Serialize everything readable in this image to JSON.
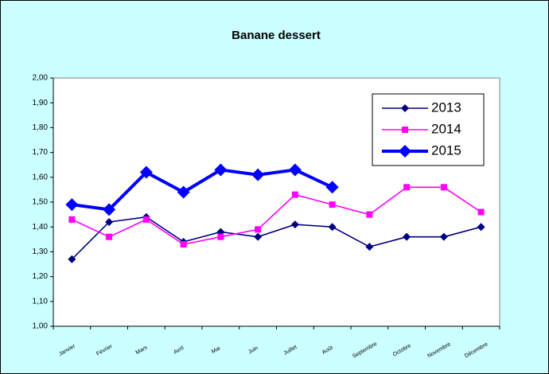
{
  "chart_data": {
    "type": "line",
    "title": "Banane dessert",
    "categories": [
      "Janvier",
      "Février",
      "Mars",
      "Avril",
      "Mai",
      "Juin",
      "Juillet",
      "Août",
      "Septembre",
      "Octobre",
      "Novembre",
      "Décembre"
    ],
    "series": [
      {
        "name": "2013",
        "color": "#000080",
        "marker": "diamond",
        "values": [
          1.27,
          1.42,
          1.44,
          1.34,
          1.38,
          1.36,
          1.41,
          1.4,
          1.32,
          1.36,
          1.36,
          1.4
        ]
      },
      {
        "name": "2014",
        "color": "#ff00ff",
        "marker": "square",
        "values": [
          1.43,
          1.36,
          1.43,
          1.33,
          1.36,
          1.39,
          1.53,
          1.49,
          1.45,
          1.56,
          1.56,
          1.46
        ]
      },
      {
        "name": "2015",
        "color": "#0000ff",
        "marker": "diamond",
        "values": [
          1.49,
          1.47,
          1.62,
          1.54,
          1.63,
          1.61,
          1.63,
          1.56,
          null,
          null,
          null,
          null
        ]
      }
    ],
    "ylim": [
      1.0,
      2.0
    ],
    "yticks": [
      {
        "value": 1.0,
        "label": "1,00"
      },
      {
        "value": 1.1,
        "label": "1,10"
      },
      {
        "value": 1.2,
        "label": "1,20"
      },
      {
        "value": 1.3,
        "label": "1,30"
      },
      {
        "value": 1.4,
        "label": "1,40"
      },
      {
        "value": 1.5,
        "label": "1,50"
      },
      {
        "value": 1.6,
        "label": "1,60"
      },
      {
        "value": 1.7,
        "label": "1,70"
      },
      {
        "value": 1.8,
        "label": "1,80"
      },
      {
        "value": 1.9,
        "label": "1,90"
      },
      {
        "value": 2.0,
        "label": "2,00"
      }
    ],
    "grid": false,
    "legend": "upper right"
  }
}
